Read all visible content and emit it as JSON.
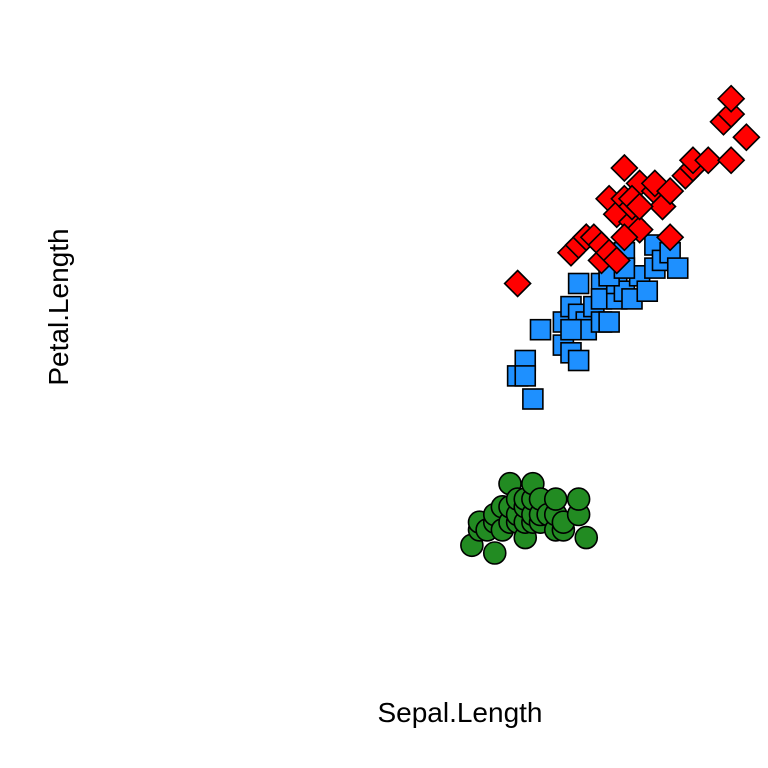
{
  "chart_data": {
    "type": "scatter",
    "title": "",
    "xlabel": "Sepal.Length",
    "ylabel": "Petal.Length",
    "xlim": [
      0,
      8
    ],
    "ylim": [
      0,
      8
    ],
    "grid": false,
    "legend": "none",
    "series": [
      {
        "marker": "circle",
        "color": "#228B22",
        "x": [
          4.3,
          4.4,
          4.4,
          4.5,
          4.6,
          4.6,
          4.6,
          4.7,
          4.7,
          4.8,
          4.8,
          4.8,
          4.9,
          4.9,
          4.9,
          5.0,
          5.0,
          5.0,
          5.0,
          5.1,
          5.1,
          5.1,
          5.1,
          5.2,
          5.2,
          5.2,
          5.3,
          5.4,
          5.4,
          5.4,
          5.5,
          5.5,
          5.7,
          5.7,
          5.8
        ],
        "y": [
          1.1,
          1.3,
          1.4,
          1.3,
          1.0,
          1.4,
          1.5,
          1.3,
          1.6,
          1.4,
          1.6,
          1.9,
          1.4,
          1.5,
          1.7,
          1.2,
          1.4,
          1.6,
          1.7,
          1.4,
          1.5,
          1.7,
          1.9,
          1.4,
          1.5,
          1.7,
          1.5,
          1.3,
          1.5,
          1.7,
          1.3,
          1.4,
          1.5,
          1.7,
          1.2
        ]
      },
      {
        "marker": "square",
        "color": "#1E90FF",
        "x": [
          4.9,
          5.0,
          5.0,
          5.1,
          5.2,
          5.5,
          5.5,
          5.6,
          5.6,
          5.7,
          5.7,
          5.8,
          5.8,
          5.9,
          6.0,
          6.0,
          6.0,
          6.1,
          6.1,
          6.2,
          6.2,
          6.3,
          6.3,
          6.4,
          6.5,
          6.6,
          6.7,
          6.7,
          6.8,
          6.9,
          7.0,
          6.1,
          5.6,
          5.7,
          6.3
        ],
        "y": [
          3.3,
          3.5,
          3.3,
          3.0,
          3.9,
          4.0,
          3.7,
          3.6,
          4.2,
          3.5,
          4.1,
          4.0,
          3.9,
          4.2,
          4.5,
          4.0,
          4.3,
          4.7,
          4.0,
          4.3,
          4.5,
          4.4,
          4.9,
          4.3,
          4.6,
          4.4,
          4.7,
          5.0,
          4.8,
          4.9,
          4.7,
          4.6,
          3.9,
          4.5,
          4.7
        ]
      },
      {
        "marker": "diamond",
        "color": "#FF0000",
        "x": [
          4.9,
          5.6,
          5.7,
          5.8,
          5.8,
          5.9,
          6.0,
          6.0,
          6.1,
          6.1,
          6.2,
          6.3,
          6.3,
          6.4,
          6.4,
          6.5,
          6.5,
          6.7,
          6.7,
          6.8,
          6.9,
          6.9,
          7.1,
          7.2,
          7.2,
          7.4,
          7.6,
          7.7,
          7.7,
          7.9,
          6.2,
          6.4,
          6.3,
          6.5,
          7.7
        ],
        "y": [
          4.5,
          4.9,
          5.0,
          5.1,
          5.1,
          5.1,
          4.8,
          5.0,
          5.6,
          4.9,
          5.4,
          5.6,
          6.0,
          5.3,
          5.5,
          5.8,
          5.2,
          5.7,
          5.8,
          5.5,
          5.7,
          5.1,
          5.9,
          6.0,
          6.1,
          6.1,
          6.6,
          6.7,
          6.1,
          6.4,
          4.8,
          5.6,
          5.1,
          5.5,
          6.9
        ]
      }
    ]
  }
}
